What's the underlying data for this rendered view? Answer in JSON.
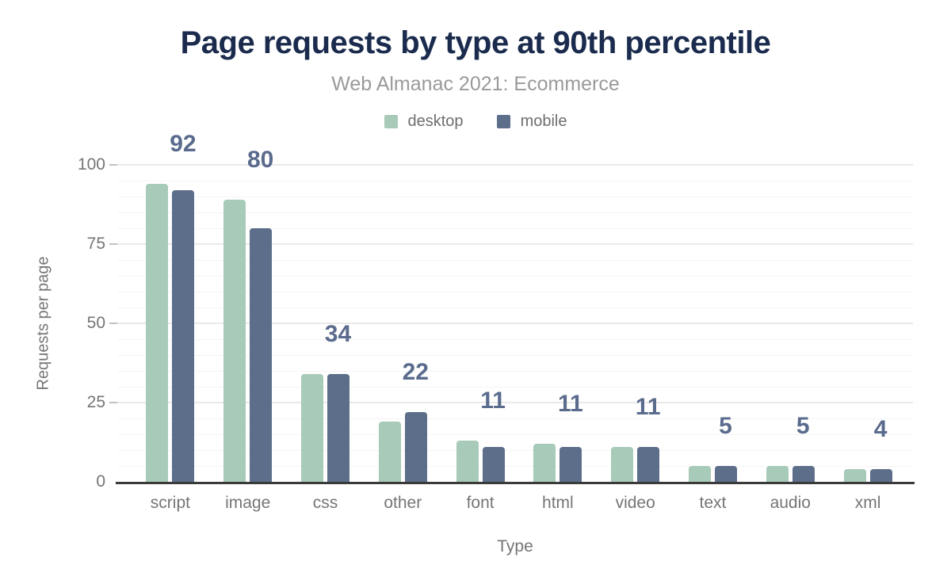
{
  "title": "Page requests by type at 90th percentile",
  "subtitle": "Web Almanac 2021: Ecommerce",
  "legend": [
    {
      "label": "desktop",
      "color": "#a8cab8"
    },
    {
      "label": "mobile",
      "color": "#5d6e8a"
    }
  ],
  "chart_data": {
    "type": "bar",
    "title": "Page requests by type at 90th percentile",
    "subtitle": "Web Almanac 2021: Ecommerce",
    "categories": [
      "script",
      "image",
      "css",
      "other",
      "font",
      "html",
      "video",
      "text",
      "audio",
      "xml"
    ],
    "series": [
      {
        "name": "desktop",
        "color": "#a8cab8",
        "values": [
          94,
          89,
          34,
          19,
          13,
          12,
          11,
          5,
          5,
          4
        ]
      },
      {
        "name": "mobile",
        "color": "#5d6e8a",
        "values": [
          92,
          80,
          34,
          22,
          11,
          11,
          11,
          5,
          5,
          4
        ]
      }
    ],
    "bar_labels": {
      "series": "mobile",
      "values": [
        "92",
        "80",
        "34",
        "22",
        "11",
        "11",
        "11",
        "5",
        "5",
        "4"
      ]
    },
    "xlabel": "Type",
    "ylabel": "Requests per page",
    "ylim": [
      0,
      100
    ],
    "yticks": [
      0,
      25,
      50,
      75,
      100
    ],
    "minor_grid_step": 5,
    "grid": "horizontal",
    "legend_position": "top"
  },
  "colors": {
    "title": "#1a2b4d",
    "subtitle": "#9a9a9a",
    "axis_text": "#757575",
    "legend_text": "#6e6e6e",
    "bar_label": "#5a6b8d",
    "axis_line": "#3a3a3a",
    "grid_major": "#e9e9e9",
    "grid_minor": "#f4f4f4",
    "background": "#ffffff"
  }
}
